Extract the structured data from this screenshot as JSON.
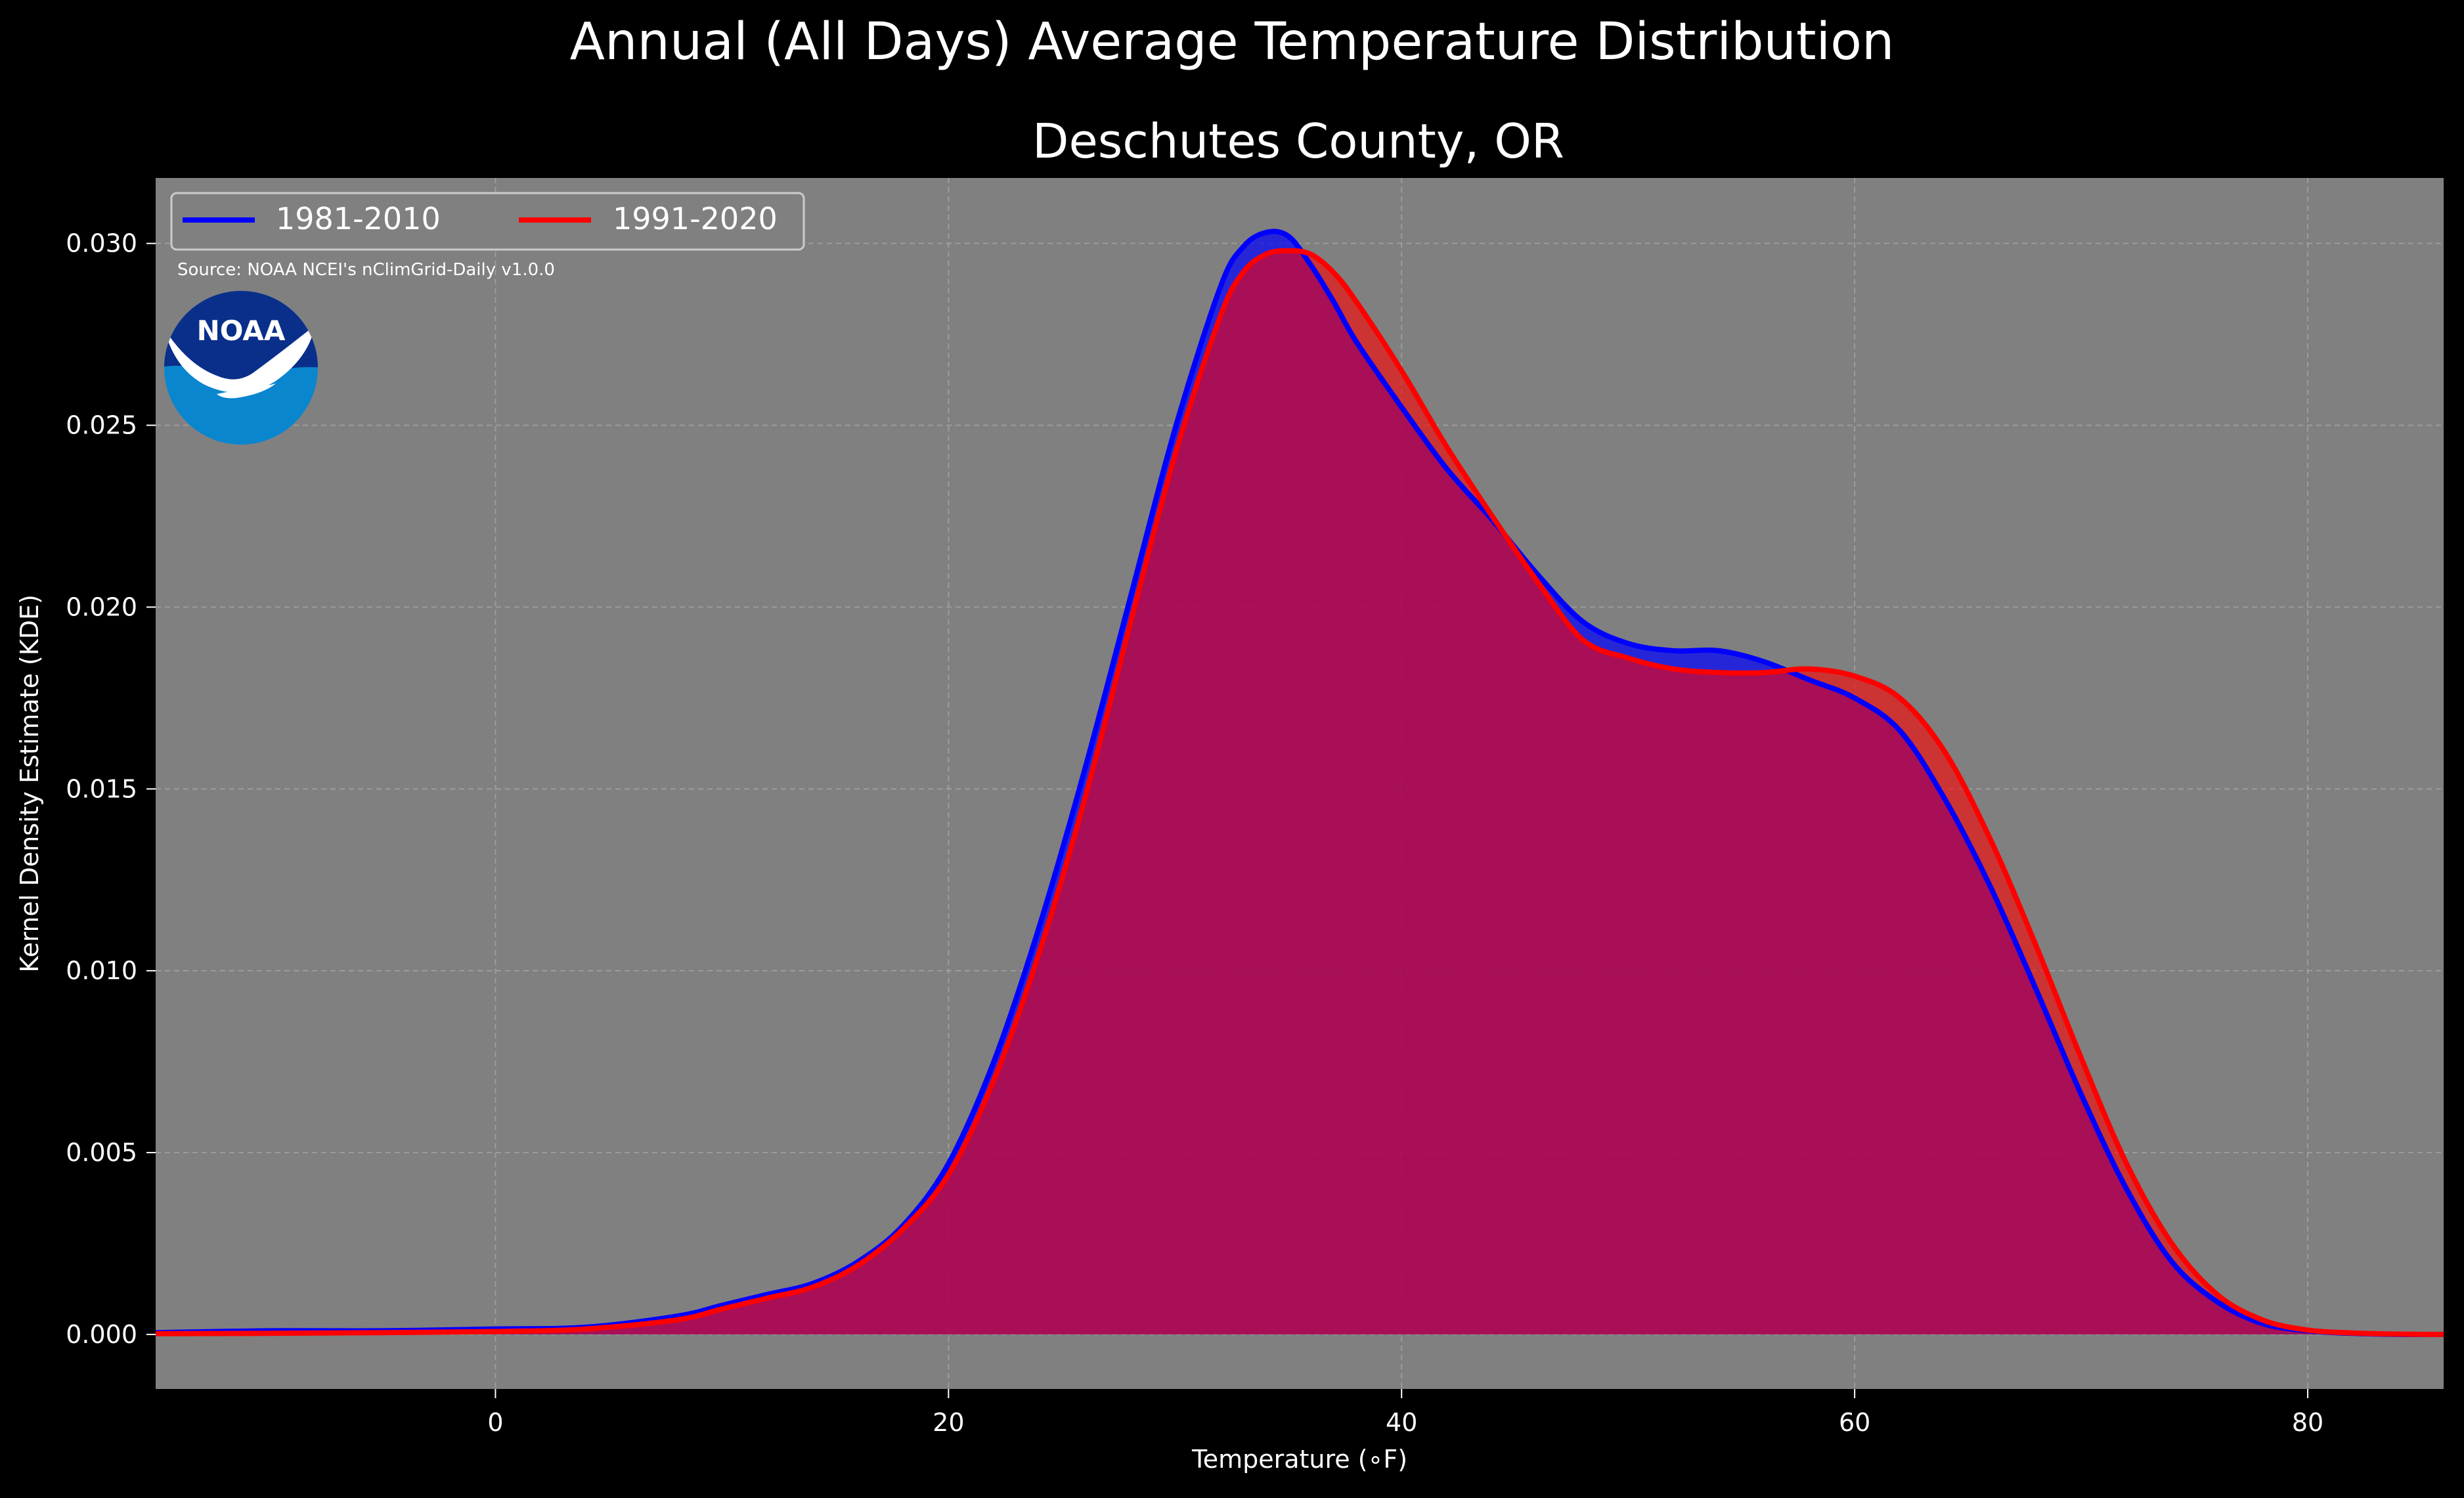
{
  "suptitle": "Annual (All Days) Average Temperature Distribution",
  "logo_text": "NOAA",
  "source_note": "Source: NOAA NCEI's nClimGrid-Daily v1.0.0",
  "colors": {
    "background": "#000000",
    "plot_bg": "#808080",
    "series1": "#0000ff",
    "series2": "#ff0000",
    "fill_overlap": "#a0205c",
    "logo_dark": "#0a2f8a",
    "logo_light": "#0a86cf"
  },
  "chart_data": {
    "type": "area",
    "title": "Deschutes County, OR",
    "xlabel": "Temperature (∘F)",
    "ylabel": "Kernel Density Estimate (KDE)",
    "xlim": [
      -15,
      86
    ],
    "ylim": [
      -0.0015,
      0.0318
    ],
    "xticks": [
      0,
      20,
      40,
      60,
      80
    ],
    "xtick_labels": [
      "0",
      "20",
      "40",
      "60",
      "80"
    ],
    "yticks": [
      0.0,
      0.005,
      0.01,
      0.015,
      0.02,
      0.025,
      0.03
    ],
    "ytick_labels": [
      "0.000",
      "0.005",
      "0.010",
      "0.015",
      "0.020",
      "0.025",
      "0.030"
    ],
    "grid": true,
    "legend_position": "top-left",
    "series": [
      {
        "name": "1981-2010",
        "color": "#0000ff",
        "x": [
          -15,
          -10,
          -5,
          0,
          4,
          8,
          10,
          12,
          14,
          16,
          18,
          20,
          22,
          24,
          26,
          28,
          30,
          32,
          33,
          34,
          35,
          36,
          37,
          38,
          40,
          42,
          44,
          46,
          48,
          50,
          52,
          54,
          56,
          58,
          60,
          62,
          64,
          66,
          68,
          70,
          72,
          74,
          76,
          78,
          80,
          82,
          84,
          86
        ],
        "y": [
          5e-05,
          0.0001,
          0.0001,
          0.00015,
          0.0002,
          0.0005,
          0.0008,
          0.0011,
          0.0014,
          0.002,
          0.003,
          0.0047,
          0.0075,
          0.0112,
          0.0155,
          0.0202,
          0.0249,
          0.0288,
          0.0299,
          0.0303,
          0.0302,
          0.0294,
          0.0284,
          0.0273,
          0.0255,
          0.0238,
          0.0224,
          0.0209,
          0.0196,
          0.019,
          0.0188,
          0.0188,
          0.0185,
          0.018,
          0.0175,
          0.0166,
          0.0147,
          0.0123,
          0.0095,
          0.0066,
          0.004,
          0.002,
          0.0009,
          0.0003,
          0.0001,
          3e-05,
          0.0,
          0.0
        ]
      },
      {
        "name": "1991-2020",
        "color": "#ff0000",
        "x": [
          -15,
          -10,
          -5,
          0,
          4,
          8,
          10,
          12,
          14,
          16,
          18,
          20,
          22,
          24,
          26,
          28,
          30,
          32,
          33,
          34,
          35,
          36,
          37,
          38,
          40,
          42,
          44,
          46,
          48,
          50,
          52,
          54,
          56,
          58,
          60,
          62,
          64,
          66,
          68,
          70,
          72,
          74,
          76,
          78,
          80,
          82,
          84,
          86
        ],
        "y": [
          2e-05,
          3e-05,
          5e-05,
          8e-05,
          0.00015,
          0.0004,
          0.0007,
          0.001,
          0.0013,
          0.0019,
          0.0029,
          0.0044,
          0.007,
          0.0105,
          0.0147,
          0.0195,
          0.0242,
          0.028,
          0.0292,
          0.0297,
          0.0298,
          0.0297,
          0.0292,
          0.0284,
          0.0265,
          0.0244,
          0.0225,
          0.0207,
          0.0191,
          0.0186,
          0.0183,
          0.0182,
          0.0182,
          0.0183,
          0.0181,
          0.0175,
          0.016,
          0.0136,
          0.0107,
          0.0076,
          0.0047,
          0.0025,
          0.0011,
          0.0004,
          0.00012,
          4e-05,
          1e-05,
          0.0
        ]
      }
    ]
  }
}
